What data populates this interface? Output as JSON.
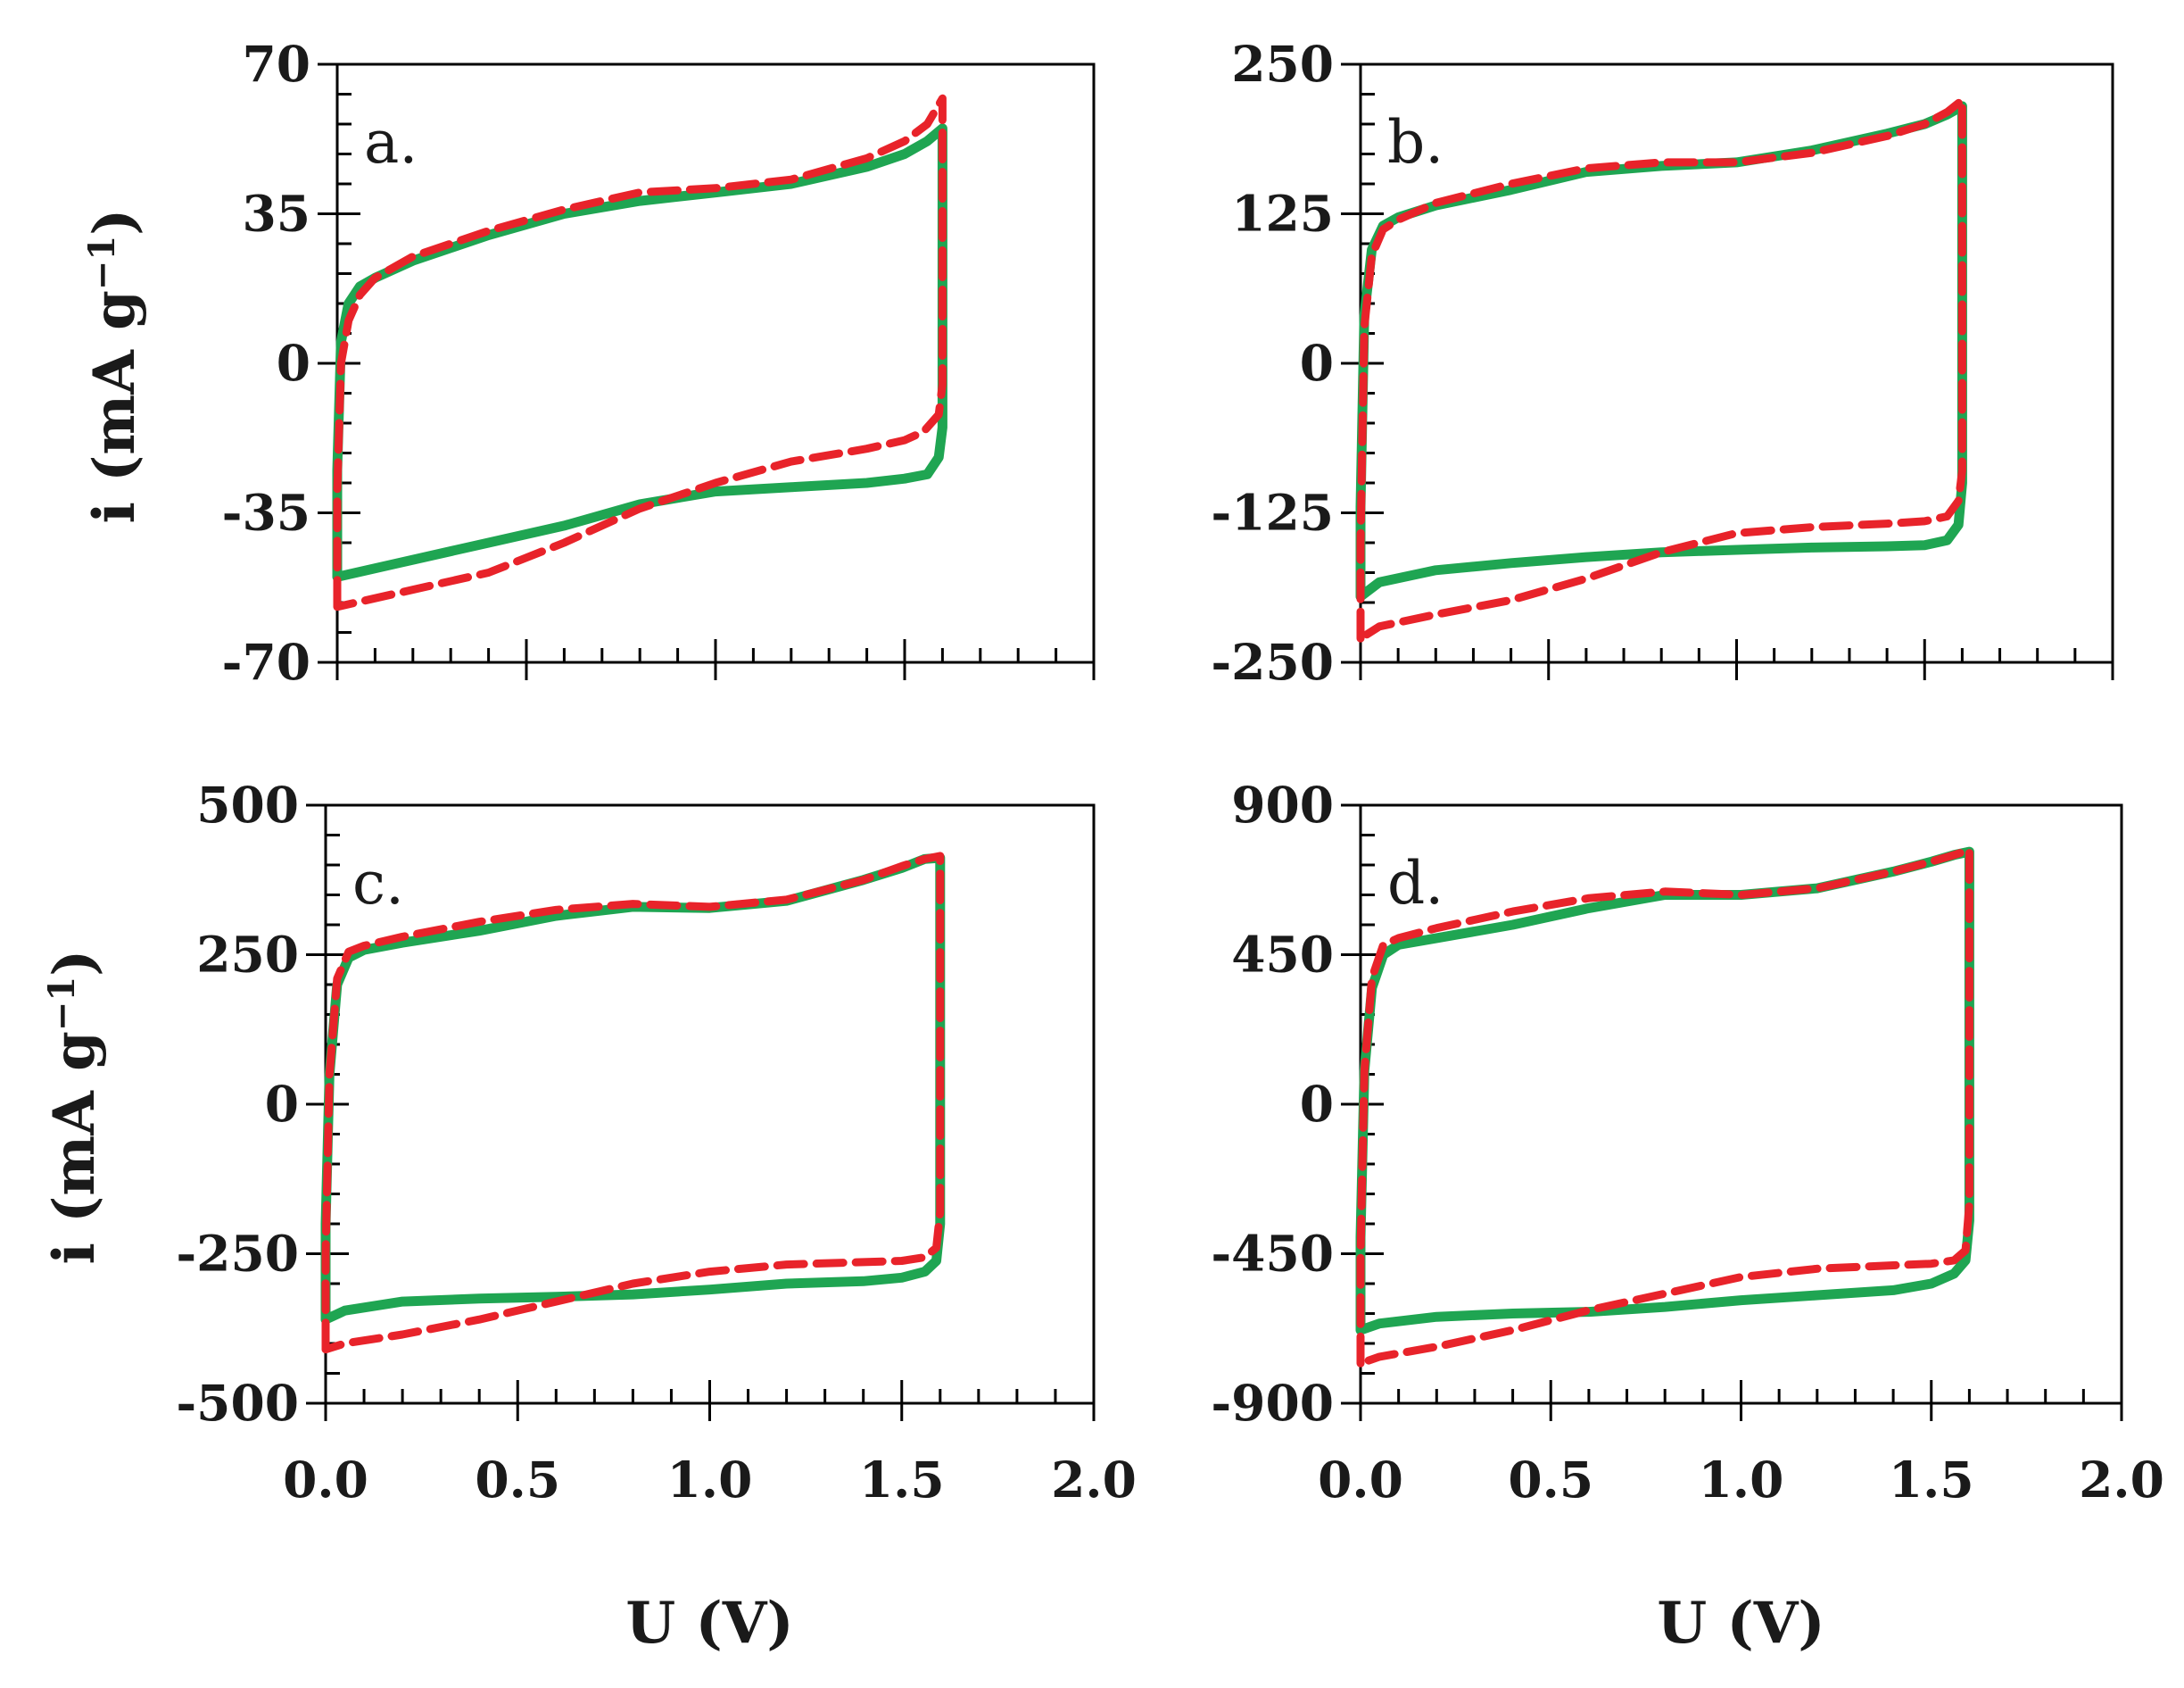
{
  "figure": {
    "x_axis_title": "U (V)",
    "y_axis_title_main": "i (mA g",
    "y_axis_title_sup": "−1",
    "y_axis_title_close": ")",
    "series_colors": {
      "solid": "#1fa552",
      "dashed": "#e8232a"
    }
  },
  "chart_data": [
    {
      "type": "line",
      "panel": "a.",
      "xlabel": "U (V)",
      "ylabel": "i (mA g−1)",
      "xlim": [
        0,
        2
      ],
      "ylim": [
        -70,
        70
      ],
      "x_ticks": [
        "0.0",
        "0.5",
        "1.0",
        "1.5",
        "2.0"
      ],
      "y_ticks": [
        "70",
        "35",
        "0",
        "-35",
        "-70"
      ],
      "y_tick_values": [
        70,
        35,
        0,
        -35,
        -70
      ],
      "x_minor_step": 0.1,
      "y_minor_step": 7,
      "show_x_tick_labels": false,
      "show_x_title": false,
      "series": [
        {
          "name": "solid",
          "style": "solid",
          "x": [
            0.0,
            0.0,
            0.01,
            0.03,
            0.06,
            0.1,
            0.2,
            0.4,
            0.6,
            0.8,
            1.0,
            1.2,
            1.4,
            1.5,
            1.56,
            1.6,
            1.6,
            1.6,
            1.59,
            1.56,
            1.5,
            1.4,
            1.2,
            1.0,
            0.8,
            0.6,
            0.4,
            0.2,
            0.05,
            0.0
          ],
          "y": [
            -50,
            -25,
            5,
            14,
            18,
            20,
            24,
            30,
            35,
            38,
            40,
            42,
            46,
            49,
            52,
            55,
            20,
            -15,
            -22,
            -26,
            -27,
            -28,
            -29,
            -30,
            -33,
            -38,
            -42,
            -46,
            -49,
            -50
          ]
        },
        {
          "name": "dashed",
          "style": "dashed",
          "x": [
            0.0,
            0.0,
            0.01,
            0.03,
            0.06,
            0.1,
            0.2,
            0.4,
            0.6,
            0.8,
            1.0,
            1.2,
            1.4,
            1.5,
            1.56,
            1.6,
            1.6,
            1.6,
            1.59,
            1.55,
            1.5,
            1.4,
            1.2,
            1.0,
            0.8,
            0.6,
            0.4,
            0.2,
            0.05,
            0.0
          ],
          "y": [
            -57,
            -30,
            0,
            10,
            16,
            20,
            25,
            31,
            36,
            40,
            41,
            43,
            48,
            52,
            56,
            62,
            25,
            -5,
            -12,
            -16,
            -18,
            -20,
            -23,
            -28,
            -34,
            -42,
            -49,
            -53,
            -56,
            -57
          ]
        }
      ]
    },
    {
      "type": "line",
      "panel": "b.",
      "xlabel": "U (V)",
      "ylabel": "i (mA g−1)",
      "xlim": [
        0,
        2
      ],
      "ylim": [
        -250,
        250
      ],
      "x_ticks": [
        "0.0",
        "0.5",
        "1.0",
        "1.5",
        "2.0"
      ],
      "y_ticks": [
        "250",
        "125",
        "0",
        "-125",
        "-250"
      ],
      "y_tick_values": [
        250,
        125,
        0,
        -125,
        -250
      ],
      "x_minor_step": 0.1,
      "y_minor_step": 25,
      "show_x_tick_labels": false,
      "show_x_title": false,
      "series": [
        {
          "name": "solid",
          "style": "solid",
          "x": [
            0.0,
            0.0,
            0.01,
            0.03,
            0.06,
            0.1,
            0.2,
            0.4,
            0.6,
            0.8,
            1.0,
            1.2,
            1.4,
            1.5,
            1.56,
            1.6,
            1.6,
            1.6,
            1.59,
            1.56,
            1.5,
            1.4,
            1.2,
            1.0,
            0.8,
            0.6,
            0.4,
            0.2,
            0.05,
            0.0
          ],
          "y": [
            -195,
            -120,
            40,
            95,
            115,
            122,
            132,
            145,
            160,
            165,
            168,
            178,
            192,
            200,
            208,
            215,
            80,
            -100,
            -135,
            -148,
            -152,
            -153,
            -154,
            -156,
            -158,
            -162,
            -167,
            -173,
            -183,
            -195
          ]
        },
        {
          "name": "dashed",
          "style": "dashed",
          "x": [
            0.0,
            0.0,
            0.01,
            0.03,
            0.06,
            0.1,
            0.2,
            0.4,
            0.6,
            0.8,
            1.0,
            1.2,
            1.4,
            1.5,
            1.56,
            1.6,
            1.6,
            1.6,
            1.59,
            1.56,
            1.5,
            1.4,
            1.2,
            1.0,
            0.8,
            0.6,
            0.4,
            0.2,
            0.05,
            0.0
          ],
          "y": [
            -230,
            -150,
            30,
            90,
            112,
            120,
            134,
            150,
            163,
            168,
            168,
            176,
            190,
            200,
            210,
            220,
            80,
            -90,
            -115,
            -128,
            -132,
            -134,
            -137,
            -142,
            -158,
            -180,
            -198,
            -210,
            -220,
            -230
          ]
        }
      ]
    },
    {
      "type": "line",
      "panel": "c.",
      "xlabel": "U (V)",
      "ylabel": "i (mA g−1)",
      "xlim": [
        0,
        2
      ],
      "ylim": [
        -500,
        500
      ],
      "x_ticks": [
        "0.0",
        "0.5",
        "1.0",
        "1.5",
        "2.0"
      ],
      "y_ticks": [
        "500",
        "250",
        "0",
        "-250",
        "-500"
      ],
      "y_tick_values": [
        500,
        250,
        0,
        -250,
        -500
      ],
      "x_minor_step": 0.1,
      "y_minor_step": 50,
      "show_x_tick_labels": true,
      "show_x_title": true,
      "series": [
        {
          "name": "solid",
          "style": "solid",
          "x": [
            0.0,
            0.0,
            0.01,
            0.03,
            0.06,
            0.1,
            0.2,
            0.4,
            0.6,
            0.8,
            1.0,
            1.2,
            1.4,
            1.5,
            1.56,
            1.6,
            1.6,
            1.6,
            1.59,
            1.56,
            1.5,
            1.4,
            1.2,
            1.0,
            0.8,
            0.6,
            0.4,
            0.2,
            0.05,
            0.0
          ],
          "y": [
            -360,
            -200,
            50,
            200,
            245,
            258,
            270,
            290,
            315,
            330,
            328,
            340,
            375,
            395,
            410,
            412,
            150,
            -200,
            -262,
            -280,
            -290,
            -296,
            -300,
            -310,
            -318,
            -322,
            -325,
            -330,
            -345,
            -360
          ]
        },
        {
          "name": "dashed",
          "style": "dashed",
          "x": [
            0.0,
            0.0,
            0.01,
            0.03,
            0.06,
            0.1,
            0.2,
            0.4,
            0.6,
            0.8,
            1.0,
            1.2,
            1.4,
            1.5,
            1.56,
            1.6,
            1.6,
            1.6,
            1.59,
            1.56,
            1.5,
            1.4,
            1.2,
            1.0,
            0.8,
            0.6,
            0.4,
            0.2,
            0.05,
            0.0
          ],
          "y": [
            -410,
            -250,
            50,
            210,
            255,
            265,
            280,
            305,
            325,
            335,
            330,
            342,
            375,
            398,
            410,
            415,
            150,
            -180,
            -240,
            -256,
            -262,
            -264,
            -268,
            -280,
            -300,
            -330,
            -360,
            -385,
            -400,
            -410
          ]
        }
      ]
    },
    {
      "type": "line",
      "panel": "d.",
      "xlabel": "U (V)",
      "ylabel": "i (mA g−1)",
      "xlim": [
        0,
        2
      ],
      "ylim": [
        -900,
        900
      ],
      "x_ticks": [
        "0.0",
        "0.5",
        "1.0",
        "1.5",
        "2.0"
      ],
      "y_ticks": [
        "900",
        "450",
        "0",
        "-450",
        "-900"
      ],
      "y_tick_values": [
        900,
        450,
        0,
        -450,
        -900
      ],
      "x_minor_step": 0.1,
      "y_minor_step": 90,
      "show_x_tick_labels": true,
      "show_x_title": true,
      "series": [
        {
          "name": "solid",
          "style": "solid",
          "x": [
            0.0,
            0.0,
            0.01,
            0.03,
            0.06,
            0.1,
            0.2,
            0.4,
            0.6,
            0.8,
            1.0,
            1.2,
            1.4,
            1.5,
            1.56,
            1.6,
            1.6,
            1.6,
            1.59,
            1.56,
            1.5,
            1.4,
            1.2,
            1.0,
            0.8,
            0.6,
            0.4,
            0.2,
            0.05,
            0.0
          ],
          "y": [
            -680,
            -400,
            100,
            350,
            450,
            480,
            500,
            540,
            590,
            630,
            630,
            650,
            700,
            730,
            750,
            760,
            300,
            -350,
            -470,
            -510,
            -540,
            -560,
            -575,
            -590,
            -610,
            -625,
            -630,
            -640,
            -660,
            -680
          ]
        },
        {
          "name": "dashed",
          "style": "dashed",
          "x": [
            0.0,
            0.0,
            0.01,
            0.03,
            0.06,
            0.1,
            0.2,
            0.4,
            0.6,
            0.8,
            1.0,
            1.2,
            1.4,
            1.5,
            1.56,
            1.6,
            1.6,
            1.6,
            1.59,
            1.56,
            1.5,
            1.4,
            1.2,
            1.0,
            0.8,
            0.6,
            0.4,
            0.2,
            0.05,
            0.0
          ],
          "y": [
            -780,
            -450,
            100,
            380,
            480,
            500,
            530,
            580,
            620,
            640,
            630,
            650,
            700,
            730,
            750,
            765,
            300,
            -300,
            -440,
            -470,
            -480,
            -485,
            -495,
            -520,
            -570,
            -620,
            -680,
            -730,
            -760,
            -780
          ]
        }
      ]
    }
  ]
}
